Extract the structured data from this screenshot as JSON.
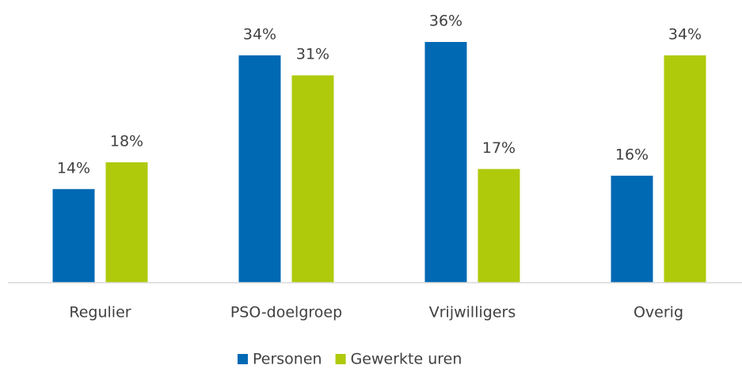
{
  "chart_data": {
    "type": "bar",
    "categories": [
      "Regulier",
      "PSO-doelgroep",
      "Vrijwilligers",
      "Overig"
    ],
    "series": [
      {
        "name": "Personen",
        "color": "#0069b4",
        "values": [
          14,
          34,
          36,
          16
        ],
        "value_labels": [
          "14%",
          "34%",
          "36%",
          "16%"
        ]
      },
      {
        "name": "Gewerkte uren",
        "color": "#afca0b",
        "values": [
          18,
          31,
          17,
          34
        ],
        "value_labels": [
          "18%",
          "31%",
          "17%",
          "34%"
        ]
      }
    ],
    "legend": "bottom"
  }
}
